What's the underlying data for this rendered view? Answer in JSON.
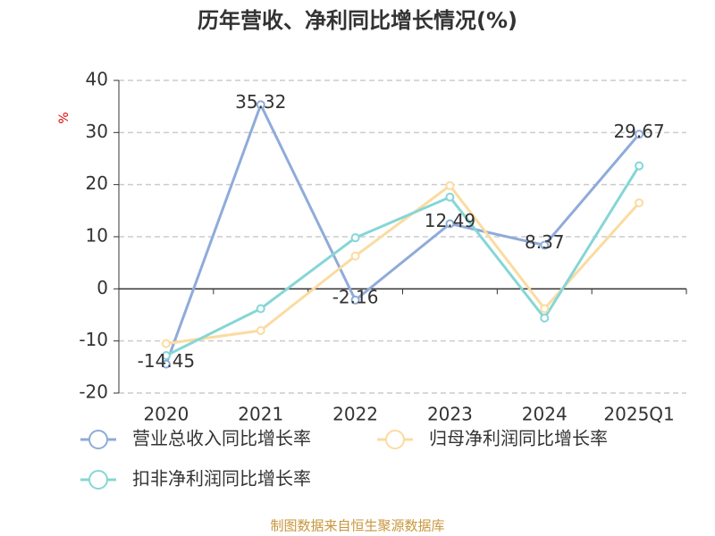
{
  "chart_data": {
    "type": "line",
    "title": "历年营收、净利同比增长情况(%)",
    "y_label": "%",
    "categories": [
      "2020",
      "2021",
      "2022",
      "2023",
      "2024",
      "2025Q1"
    ],
    "series": [
      {
        "name": "营业总收入同比增长率",
        "color": "#8fabd9",
        "values": [
          -14.45,
          35.32,
          -2.16,
          12.49,
          8.37,
          29.67
        ],
        "data_labels": true
      },
      {
        "name": "归母净利润同比增长率",
        "color": "#fbdba0",
        "values": [
          -10.5,
          -8,
          6.3,
          19.8,
          -3.8,
          16.5
        ],
        "data_labels": false
      },
      {
        "name": "扣非净利润同比增长率",
        "color": "#86d6d6",
        "values": [
          -12.8,
          -3.8,
          9.8,
          17.6,
          -5.6,
          23.6
        ],
        "data_labels": false
      }
    ],
    "ylim": [
      -20,
      40
    ],
    "yticks": [
      -20,
      -10,
      0,
      10,
      20,
      30,
      40
    ],
    "grid": true,
    "legend": "bottom",
    "source": "制图数据来自恒生聚源数据库"
  }
}
